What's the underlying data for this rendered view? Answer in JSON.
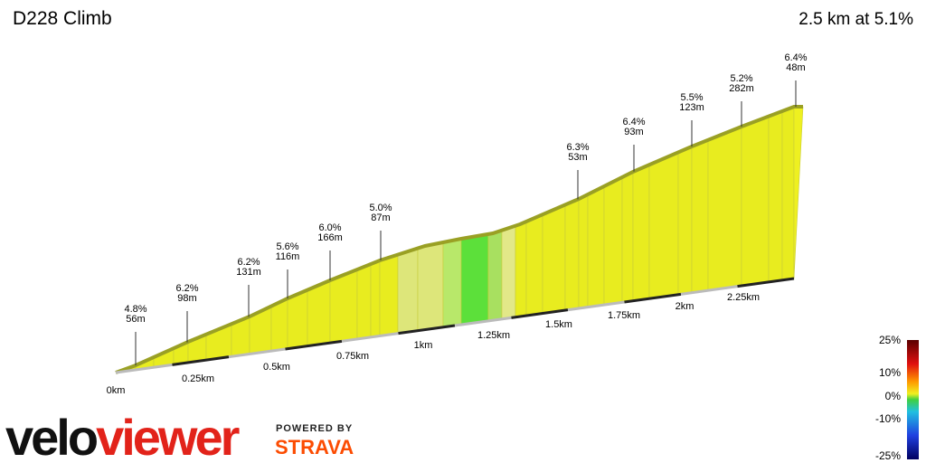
{
  "header": {
    "title": "D228 Climb",
    "summary": "2.5 km at 5.1%"
  },
  "segments": [
    {
      "grade": "4.8%",
      "length": "56m"
    },
    {
      "grade": "6.2%",
      "length": "98m"
    },
    {
      "grade": "6.2%",
      "length": "131m"
    },
    {
      "grade": "5.6%",
      "length": "116m"
    },
    {
      "grade": "6.0%",
      "length": "166m"
    },
    {
      "grade": "5.0%",
      "length": "87m"
    },
    {
      "grade": "6.3%",
      "length": "53m"
    },
    {
      "grade": "6.4%",
      "length": "93m"
    },
    {
      "grade": "5.5%",
      "length": "123m"
    },
    {
      "grade": "5.2%",
      "length": "282m"
    },
    {
      "grade": "6.4%",
      "length": "48m"
    }
  ],
  "distance_labels": [
    "0km",
    "0.25km",
    "0.5km",
    "0.75km",
    "1km",
    "1.25km",
    "1.5km",
    "1.75km",
    "2km",
    "2.25km"
  ],
  "legend_labels": [
    "25%",
    "10%",
    "0%",
    "-10%",
    "-25%"
  ],
  "branding": {
    "velo": "velo",
    "viewer": "viewer",
    "powered_by": "POWERED BY",
    "strava": "STRAVA"
  }
}
